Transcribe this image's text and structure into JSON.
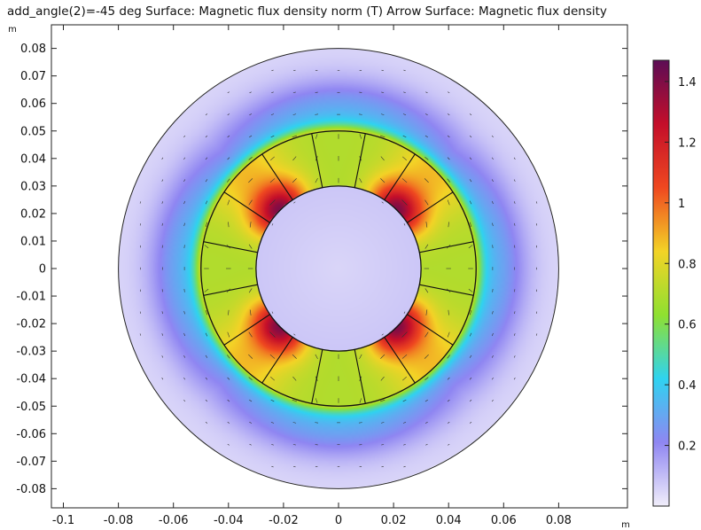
{
  "title": "add_angle(2)=-45 deg  Surface: Magnetic flux density norm (T)  Arrow Surface: Magnetic flux density",
  "chart_data": {
    "type": "heatmap",
    "title": "add_angle(2)=-45 deg  Surface: Magnetic flux density norm (T)  Arrow Surface: Magnetic flux density",
    "x_unit": "m",
    "y_unit": "m",
    "xlim": [
      -0.11,
      0.105
    ],
    "ylim": [
      -0.088,
      0.088
    ],
    "x_ticks": [
      -0.1,
      -0.08,
      -0.06,
      -0.04,
      -0.02,
      0,
      0.02,
      0.04,
      0.06,
      0.08
    ],
    "x_tick_labels": [
      "-0.1",
      "-0.08",
      "-0.06",
      "-0.04",
      "-0.02",
      "0",
      "0.02",
      "0.04",
      "0.06",
      "0.08"
    ],
    "y_ticks": [
      0.08,
      0.07,
      0.06,
      0.05,
      0.04,
      0.03,
      0.02,
      0.01,
      0,
      -0.01,
      -0.02,
      -0.03,
      -0.04,
      -0.05,
      -0.06,
      -0.07,
      -0.08
    ],
    "y_tick_labels": [
      "0.08",
      "0.07",
      "0.06",
      "0.05",
      "0.04",
      "0.03",
      "0.02",
      "0.01",
      "0",
      "-0.01",
      "-0.02",
      "-0.03",
      "-0.04",
      "-0.05",
      "-0.06",
      "-0.07",
      "-0.08"
    ],
    "geometry": {
      "outer_radius": 0.08,
      "ring_outer_radius": 0.05,
      "ring_inner_radius": 0.03,
      "magnet_segments": 16
    },
    "colorbar": {
      "min": 0,
      "max": 1.47,
      "ticks": [
        0.2,
        0.4,
        0.6,
        0.8,
        1,
        1.2,
        1.4
      ],
      "tick_labels": [
        "0.2",
        "0.4",
        "0.6",
        "0.8",
        "1",
        "1.2",
        "1.4"
      ],
      "colormap": [
        "#f1eefa",
        "#8f86f2",
        "#2fd3f0",
        "#8fe030",
        "#f3d326",
        "#ef4820",
        "#c40e2a",
        "#5c0d55"
      ]
    },
    "field_peaks": [
      {
        "angle_deg": 45,
        "value": 1.4
      },
      {
        "angle_deg": 135,
        "value": 1.4
      },
      {
        "angle_deg": 225,
        "value": 1.4
      },
      {
        "angle_deg": 315,
        "value": 1.4
      }
    ],
    "field_levels": {
      "hub": 0.05,
      "outer_region_mid": 0.25,
      "outer_edge": 0.05,
      "ring_min": 0.7
    }
  }
}
